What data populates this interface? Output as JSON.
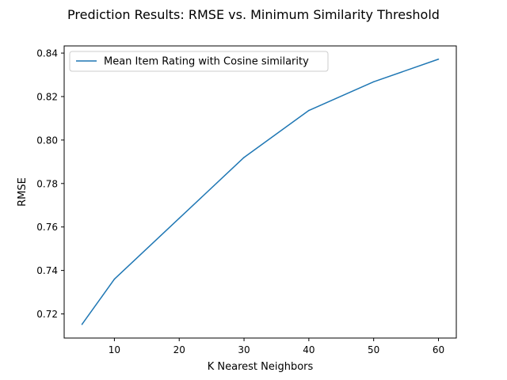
{
  "chart_data": {
    "type": "line",
    "title": "Prediction Results: RMSE vs. Minimum Similarity Threshold",
    "xlabel": "K Nearest Neighbors",
    "ylabel": "RMSE",
    "xlim": [
      2.25,
      62.75
    ],
    "ylim": [
      0.7089,
      0.8433
    ],
    "xticks": [
      10,
      20,
      30,
      40,
      50,
      60
    ],
    "yticks": [
      0.72,
      0.74,
      0.76,
      0.78,
      0.8,
      0.82,
      0.84
    ],
    "xtick_labels": [
      "10",
      "20",
      "30",
      "40",
      "50",
      "60"
    ],
    "ytick_labels": [
      "0.72",
      "0.74",
      "0.76",
      "0.78",
      "0.80",
      "0.82",
      "0.84"
    ],
    "grid": false,
    "legend_position": "top-left",
    "series": [
      {
        "name": "Mean Item Rating with Cosine similarity",
        "color": "#1f77b4",
        "x": [
          5,
          10,
          20,
          30,
          40,
          50,
          60
        ],
        "y": [
          0.7152,
          0.736,
          0.764,
          0.792,
          0.8136,
          0.8268,
          0.8372
        ]
      }
    ]
  }
}
